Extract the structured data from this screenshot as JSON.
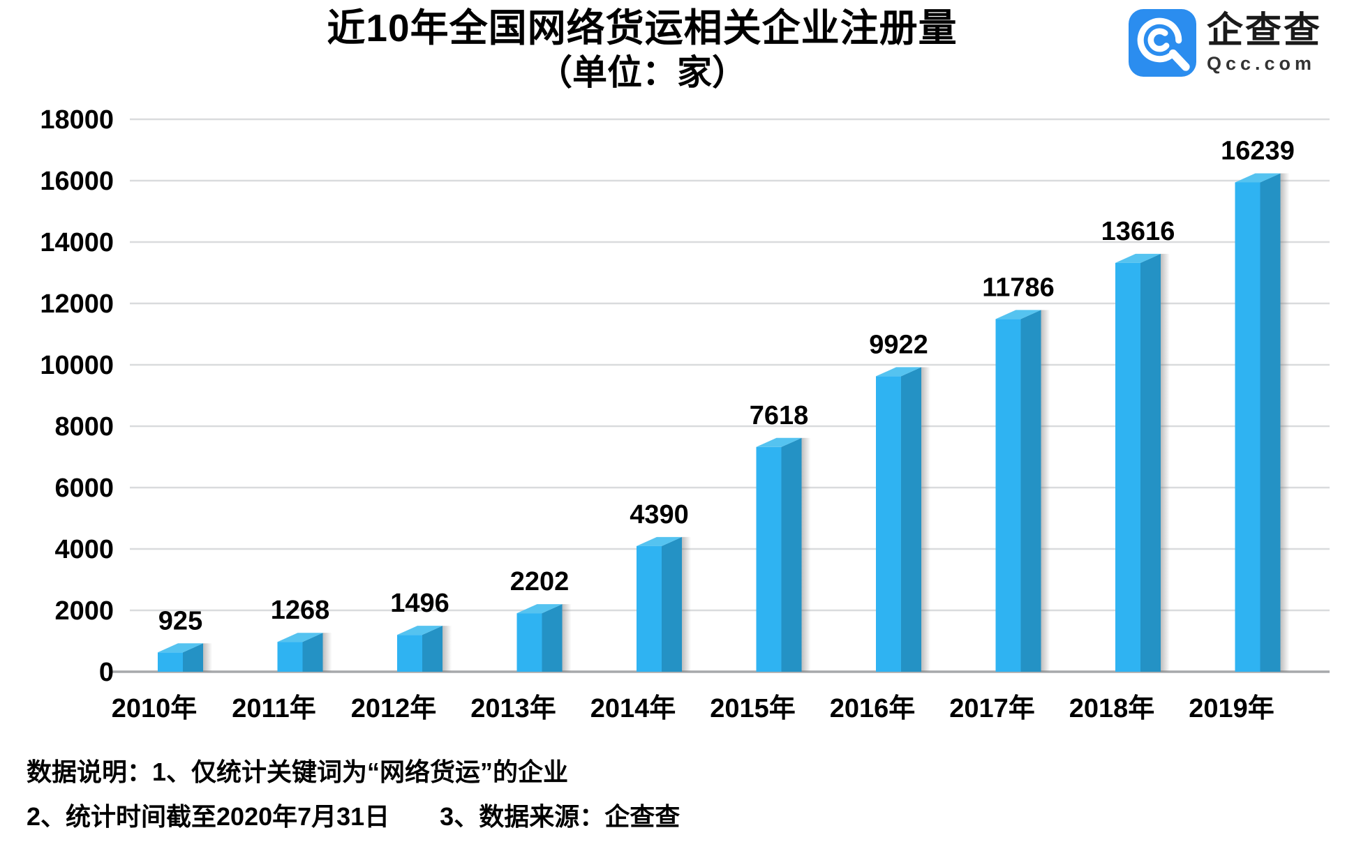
{
  "header": {
    "title_line1": "近10年全国网络货运相关企业注册量",
    "title_line2": "（单位：家）"
  },
  "logo": {
    "name": "企查查",
    "domain": "Qcc.com",
    "icon": "qcc-magnifier-q-icon",
    "icon_color": "#2b8def",
    "icon_glyph_color": "#ffffff"
  },
  "chart_data": {
    "type": "bar",
    "title": "近10年全国网络货运相关企业注册量",
    "subtitle": "（单位：家）",
    "unit": "家",
    "categories": [
      "2010年",
      "2011年",
      "2012年",
      "2013年",
      "2014年",
      "2015年",
      "2016年",
      "2017年",
      "2018年",
      "2019年"
    ],
    "values": [
      925,
      1268,
      1496,
      2202,
      4390,
      7618,
      9922,
      11786,
      13616,
      16239
    ],
    "xlabel": "",
    "ylabel": "",
    "ylim": [
      0,
      18000
    ],
    "ytick_step": 2000,
    "grid": true,
    "legend": "none",
    "bar_style": "3d",
    "colors": {
      "bar_front": "#2fb3f2",
      "bar_side": "#2492c5",
      "bar_top": "#55c3f0",
      "grid": "#d9dbdd",
      "axis": "#a7a9ab",
      "label": "#000000"
    }
  },
  "footer": {
    "line1": "数据说明：1、仅统计关键词为“网络货运”的企业",
    "line2": "2、统计时间截至2020年7月31日　　3、数据来源：企查查"
  }
}
